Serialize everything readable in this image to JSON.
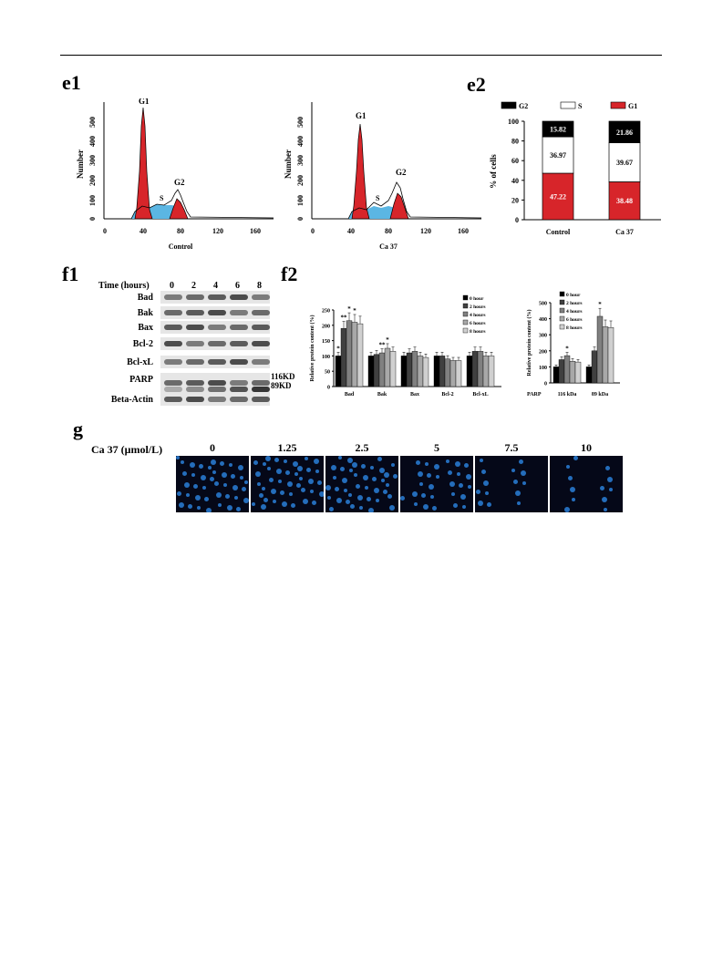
{
  "panels": {
    "e1": "e1",
    "e2": "e2",
    "f1": "f1",
    "f2": "f2",
    "g": "g"
  },
  "flow": {
    "left": {
      "xlabel": "Control",
      "ylabel": "Number",
      "peaks": {
        "g1": "G1",
        "s": "S",
        "g2": "G2"
      }
    },
    "right": {
      "xlabel": "Ca 37",
      "ylabel": "Number",
      "peaks": {
        "g1": "G1",
        "s": "S",
        "g2": "G2"
      }
    },
    "xticks": [
      "0",
      "40",
      "80",
      "120",
      "160"
    ],
    "yticks": [
      "0",
      "100",
      "200",
      "300",
      "400",
      "500"
    ]
  },
  "colors": {
    "g1": "#d7252a",
    "s": "#5bb6e3",
    "g2": "#000000",
    "line": "#000000"
  },
  "chart_data": [
    {
      "type": "bar",
      "stacked": true,
      "categories": [
        "Control",
        "Ca 37"
      ],
      "ylabel": "% of cells",
      "ylim": [
        0,
        100
      ],
      "yticks": [
        "0",
        "20",
        "40",
        "60",
        "80",
        "100"
      ],
      "legend": [
        "G2",
        "S",
        "G1"
      ],
      "series": [
        {
          "name": "G1",
          "values": [
            47.22,
            38.48
          ],
          "color": "#d7252a"
        },
        {
          "name": "S",
          "values": [
            36.97,
            39.67
          ],
          "color": "#ffffff"
        },
        {
          "name": "G2",
          "values": [
            15.82,
            21.86
          ],
          "color": "#000000"
        }
      ],
      "value_labels": {
        "G1": [
          "47.22",
          "38.48"
        ],
        "S": [
          "36.97",
          "39.67"
        ],
        "G2": [
          "15.82",
          "21.86"
        ]
      }
    },
    {
      "type": "bar",
      "categories": [
        "Bad",
        "Bak",
        "Bax",
        "Bcl-2",
        "Bcl-xL"
      ],
      "ylabel": "Relative protein content (%)",
      "ylim": [
        0,
        250
      ],
      "yticks": [
        "0",
        "50",
        "100",
        "150",
        "200",
        "250"
      ],
      "series": [
        {
          "name": "0 hour",
          "values": [
            100,
            100,
            100,
            100,
            100
          ],
          "color": "#000000"
        },
        {
          "name": "2 hours",
          "values": [
            190,
            105,
            110,
            100,
            115
          ],
          "color": "#404040"
        },
        {
          "name": "4 hours",
          "values": [
            215,
            110,
            115,
            90,
            115
          ],
          "color": "#808080"
        },
        {
          "name": "6 hours",
          "values": [
            210,
            125,
            100,
            85,
            100
          ],
          "color": "#a8a8a8"
        },
        {
          "name": "8 hours",
          "values": [
            205,
            115,
            95,
            85,
            100
          ],
          "color": "#d0d0d0"
        }
      ],
      "sig": [
        [
          "*",
          "**",
          "*",
          "*"
        ],
        [
          "",
          "",
          "**",
          "*"
        ],
        [],
        [],
        []
      ]
    },
    {
      "type": "bar",
      "categories": [
        "116 kDa",
        "89 kDa"
      ],
      "group_label": "PARP",
      "ylabel": "Relative protein content (%)",
      "ylim": [
        0,
        500
      ],
      "yticks": [
        "0",
        "100",
        "200",
        "300",
        "400",
        "500"
      ],
      "series": [
        {
          "name": "0 hour",
          "values": [
            100,
            100
          ],
          "color": "#000000"
        },
        {
          "name": "2 hours",
          "values": [
            145,
            200
          ],
          "color": "#404040"
        },
        {
          "name": "4 hours",
          "values": [
            170,
            415
          ],
          "color": "#808080"
        },
        {
          "name": "6 hours",
          "values": [
            135,
            350
          ],
          "color": "#a8a8a8"
        },
        {
          "name": "8 hours",
          "values": [
            130,
            345
          ],
          "color": "#d0d0d0"
        }
      ],
      "sig": [
        [
          "",
          "",
          "*",
          "",
          ""
        ],
        [
          "",
          "",
          "*",
          "",
          ""
        ]
      ]
    }
  ],
  "blot": {
    "time_header": "Time (hours)",
    "times": [
      "0",
      "2",
      "4",
      "6",
      "8"
    ],
    "rows": [
      "Bad",
      "Bak",
      "Bax",
      "Bcl-2",
      "Bcl-xL",
      "PARP",
      "Beta-Actin"
    ],
    "parp_bands": [
      "116KD",
      "89KD"
    ]
  },
  "micro": {
    "header": "Ca 37 (μmol/L)",
    "conc": [
      "0",
      "1.25",
      "2.5",
      "5",
      "7.5",
      "10"
    ],
    "density": [
      1.0,
      1.0,
      1.0,
      0.7,
      0.35,
      0.3
    ]
  }
}
